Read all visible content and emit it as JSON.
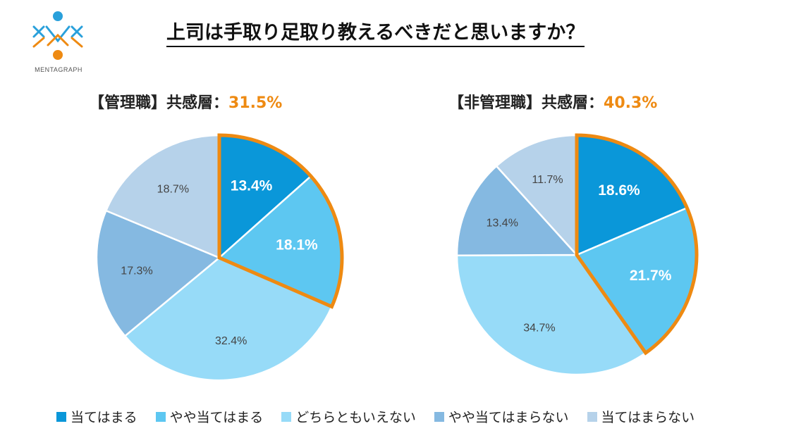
{
  "header": {
    "title": "上司は手取り足取り教えるべきだと思いますか？",
    "logo_text": "MENTAGRAPH"
  },
  "colors": {
    "accent": "#ee8a12",
    "logo_blue": "#29a0db",
    "logo_orange": "#ee8a12",
    "slices": [
      "#0a97d9",
      "#5dc7f1",
      "#97dbf8",
      "#85b9e1",
      "#b6d2ea"
    ]
  },
  "legend": [
    {
      "label": "当てはまる",
      "color": "#0a97d9"
    },
    {
      "label": "やや当てはまる",
      "color": "#5dc7f1"
    },
    {
      "label": "どちらともいえない",
      "color": "#97dbf8"
    },
    {
      "label": "やや当てはまらない",
      "color": "#85b9e1"
    },
    {
      "label": "当てはまらない",
      "color": "#b6d2ea"
    }
  ],
  "chart_data": [
    {
      "type": "pie",
      "title": "【管理職】共感層：",
      "highlight": "31.5%",
      "categories": [
        "当てはまる",
        "やや当てはまる",
        "どちらともいえない",
        "やや当てはまらない",
        "当てはまらない"
      ],
      "values": [
        13.4,
        18.1,
        32.4,
        17.3,
        18.7
      ],
      "value_labels": [
        "13.4%",
        "18.1%",
        "32.4%",
        "17.3%",
        "18.7%"
      ],
      "highlighted_slices": [
        0,
        1
      ]
    },
    {
      "type": "pie",
      "title": "【非管理職】共感層：",
      "highlight": "40.3%",
      "categories": [
        "当てはまる",
        "やや当てはまる",
        "どちらともいえない",
        "やや当てはまらない",
        "当てはまらない"
      ],
      "values": [
        18.6,
        21.7,
        34.7,
        13.4,
        11.7
      ],
      "value_labels": [
        "18.6%",
        "21.7%",
        "34.7%",
        "13.4%",
        "11.7%"
      ],
      "highlighted_slices": [
        0,
        1
      ]
    }
  ]
}
